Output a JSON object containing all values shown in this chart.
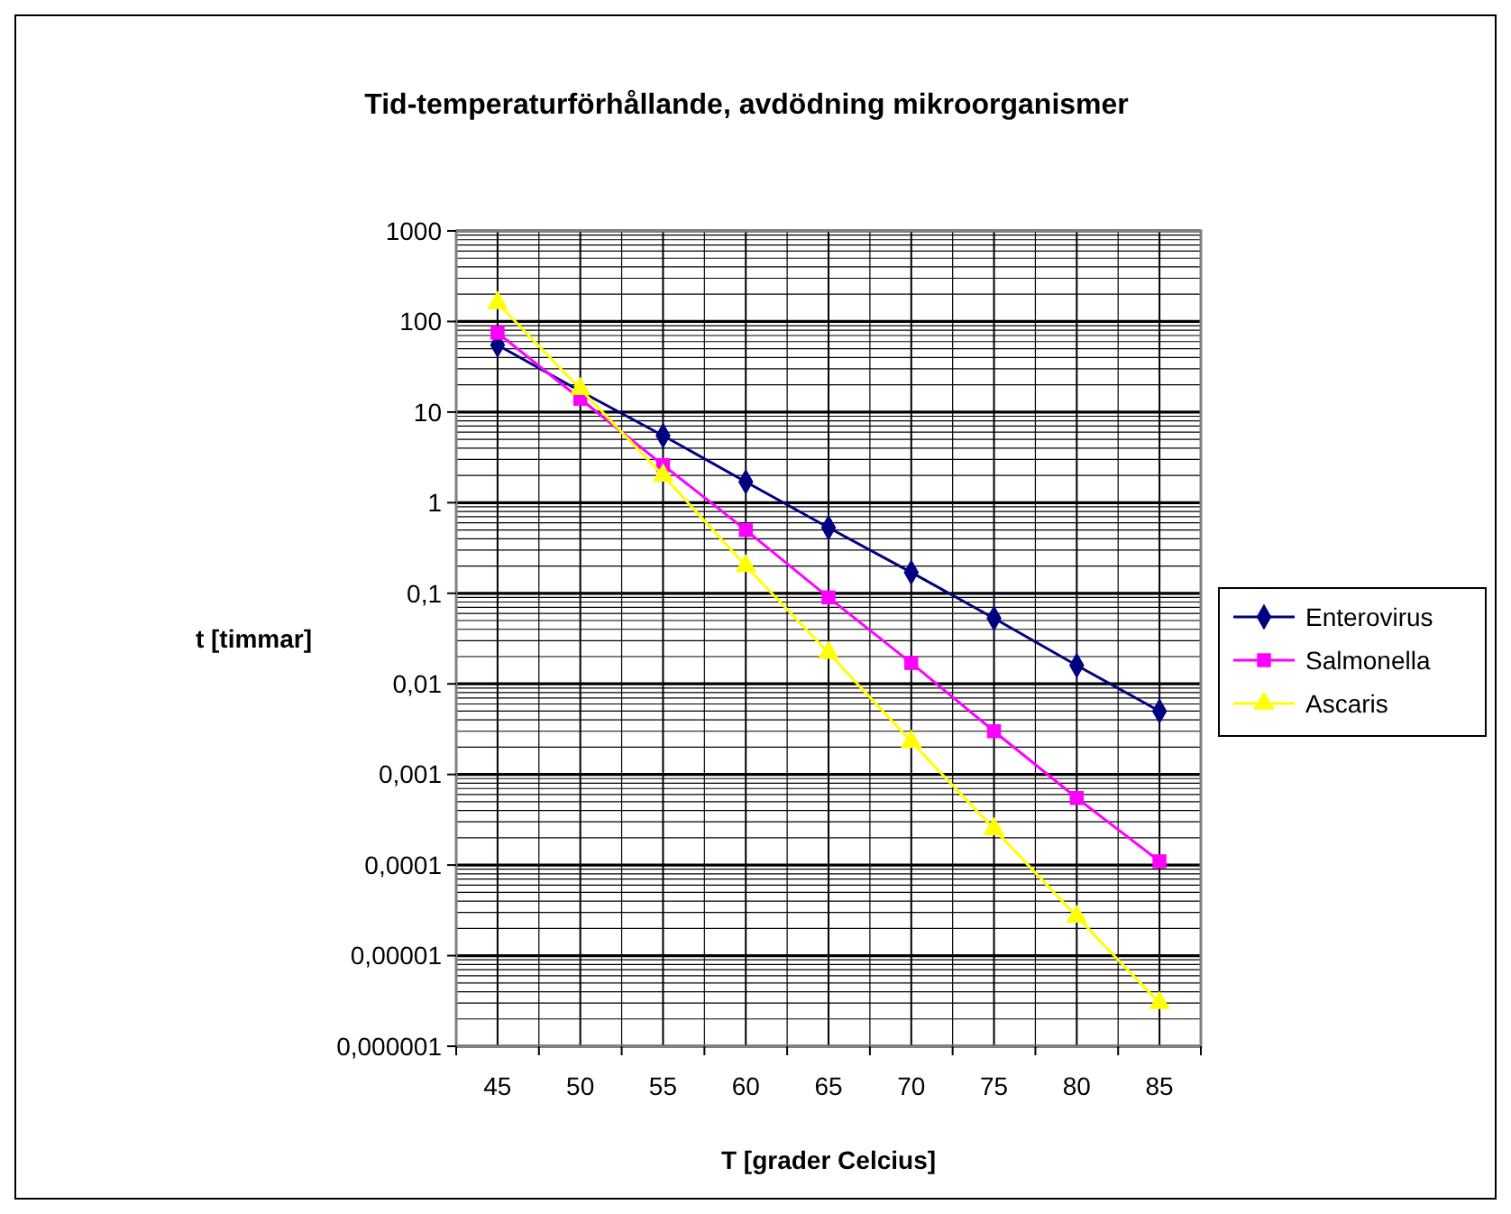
{
  "chart_data": {
    "type": "line",
    "title": "Tid-temperaturförhållande, avdödning mikroorganismer",
    "xlabel": "T [grader Celcius]",
    "ylabel": "t [timmar]",
    "categories": [
      "45",
      "50",
      "55",
      "60",
      "65",
      "70",
      "75",
      "80",
      "85"
    ],
    "log": true,
    "ylim": [
      1e-06,
      1000
    ],
    "yticks": [
      {
        "value": 1e-06,
        "label": "0,000001"
      },
      {
        "value": 1e-05,
        "label": "0,00001"
      },
      {
        "value": 0.0001,
        "label": "0,0001"
      },
      {
        "value": 0.001,
        "label": "0,001"
      },
      {
        "value": 0.01,
        "label": "0,01"
      },
      {
        "value": 0.1,
        "label": "0,1"
      },
      1,
      10,
      100,
      1000
    ],
    "grid": true,
    "legend": "right",
    "series": [
      {
        "name": "Enterovirus",
        "color": "#000080",
        "marker": "diamond",
        "values": [
          55,
          17,
          5.5,
          1.7,
          0.53,
          0.17,
          0.053,
          0.016,
          0.005
        ]
      },
      {
        "name": "Salmonella",
        "color": "#ff00ff",
        "marker": "square",
        "values": [
          75,
          14,
          2.6,
          0.5,
          0.09,
          0.017,
          0.003,
          0.00055,
          0.00011
        ]
      },
      {
        "name": "Ascaris",
        "color": "#ffff00",
        "marker": "triangle",
        "values": [
          160,
          18,
          2,
          0.2,
          0.022,
          0.0023,
          0.00025,
          2.7e-05,
          3e-06
        ]
      }
    ]
  }
}
